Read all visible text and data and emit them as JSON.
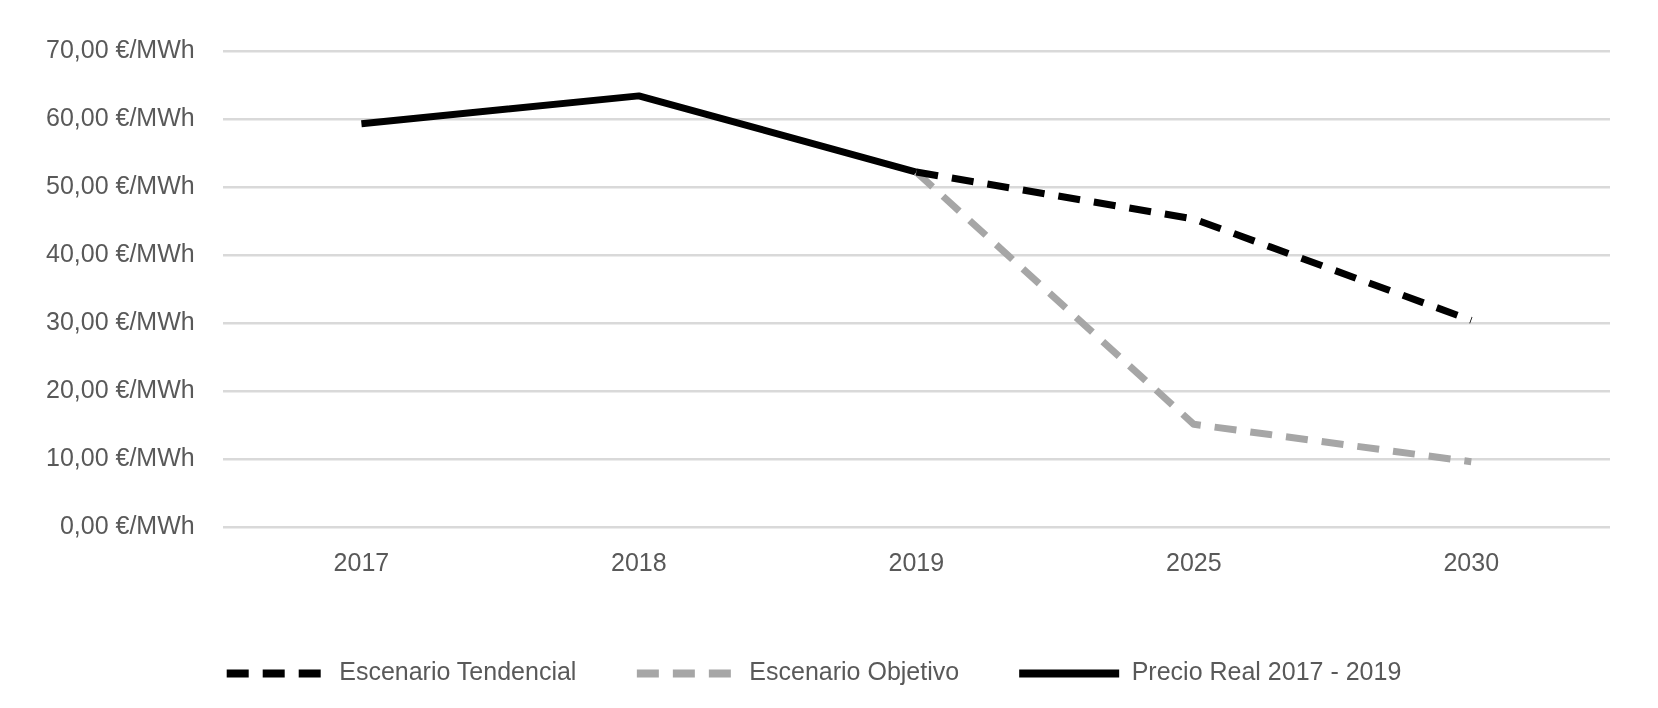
{
  "chart_data": {
    "type": "line",
    "categories": [
      "2017",
      "2018",
      "2019",
      "2025",
      "2030"
    ],
    "series": [
      {
        "name": "Escenario Tendencial",
        "color": "#000000",
        "line_style": "dashed",
        "values": [
          null,
          null,
          52.2,
          45.3,
          30.4
        ]
      },
      {
        "name": "Escenario Objetivo",
        "color": "#a6a6a6",
        "line_style": "dashed",
        "values": [
          null,
          null,
          52.2,
          15.1,
          9.6
        ]
      },
      {
        "name": "Precio Real 2017 - 2019",
        "color": "#000000",
        "line_style": "solid",
        "values": [
          59.3,
          63.4,
          52.2,
          null,
          null
        ]
      }
    ],
    "ylim": [
      0,
      70
    ],
    "yticks": [
      {
        "value": 0,
        "label": "0,00 €/MWh"
      },
      {
        "value": 10,
        "label": "10,00 €/MWh"
      },
      {
        "value": 20,
        "label": "20,00 €/MWh"
      },
      {
        "value": 30,
        "label": "30,00 €/MWh"
      },
      {
        "value": 40,
        "label": "40,00 €/MWh"
      },
      {
        "value": 50,
        "label": "50,00 €/MWh"
      },
      {
        "value": 60,
        "label": "60,00 €/MWh"
      },
      {
        "value": 70,
        "label": "70,00 €/MWh"
      }
    ],
    "grid": "y",
    "legend": "bottom",
    "marker": "none"
  }
}
